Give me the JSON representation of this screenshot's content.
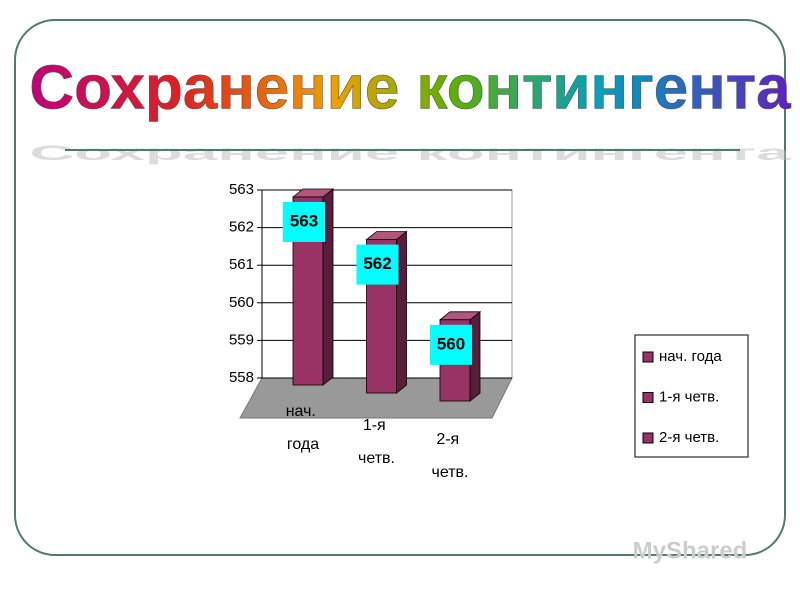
{
  "title": "Сохранение контингента",
  "watermark": "MyShared",
  "chart_data": {
    "type": "bar3d",
    "categories": [
      "нач. года",
      "1-я четв.",
      "2-я четв."
    ],
    "values": [
      563,
      562,
      560
    ],
    "color": "#993366",
    "label_color": "#00ffff",
    "ylim": [
      558,
      563
    ],
    "yticks": [
      558,
      559,
      560,
      561,
      562,
      563
    ],
    "grid": true,
    "legend": "right"
  }
}
